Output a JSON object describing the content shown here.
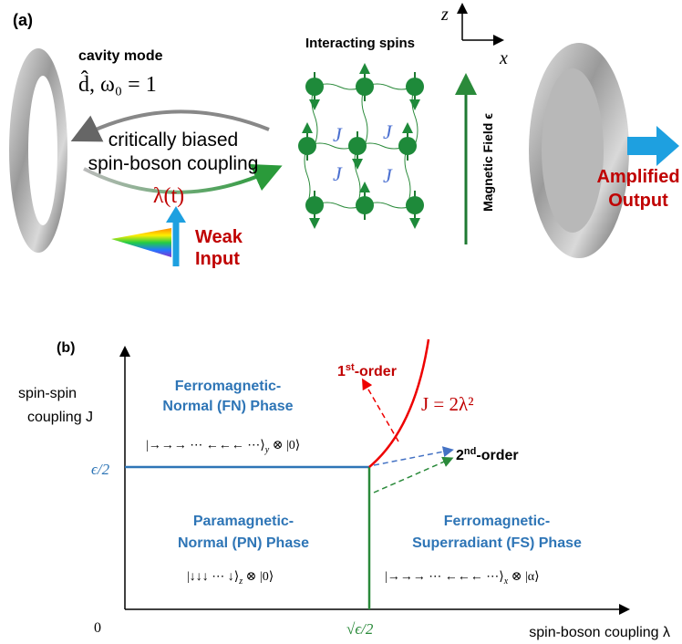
{
  "panel_a": {
    "label": "(a)",
    "cavity_title": "cavity mode",
    "cavity_params": "d̂, ω₀ = 1",
    "coupling_line1": "critically biased",
    "coupling_line2": "spin-boson coupling",
    "coupling_symbol": "λ(t)",
    "input_line1": "Weak",
    "input_line2": "Input",
    "spins_title": "Interacting spins",
    "spin_coupling_symbol": "J",
    "field_label": "Magnetic Field ϵ",
    "axis_z": "z",
    "axis_x": "x",
    "output_line1": "Amplified",
    "output_line2": "Output"
  },
  "panel_b": {
    "label": "(b)",
    "y_axis_label_line1": "spin-spin",
    "y_axis_label_line2": "coupling J",
    "x_axis_label": "spin-boson coupling λ",
    "origin": "0",
    "y_mark": "ϵ/2",
    "x_mark": "√ϵ/2",
    "fn_phase": {
      "line1": "Ferromagnetic-",
      "line2": "Normal (FN) Phase",
      "state": {
        "ket": "|→→→ ⋯ ←←← ⋯⟩",
        "sub": "y",
        "rest": " ⊗ |0⟩"
      }
    },
    "pn_phase": {
      "line1": "Paramagnetic-",
      "line2": "Normal (PN) Phase",
      "state": {
        "ket": "|↓↓↓ ⋯ ↓⟩",
        "sub": "z",
        "rest": " ⊗ |0⟩"
      }
    },
    "fs_phase": {
      "line1": "Ferromagnetic-",
      "line2": "Superradiant (FS) Phase",
      "state": {
        "ket": "|→→→ ⋯ ←←← ⋯⟩",
        "sub": "x",
        "rest": " ⊗ |α⟩"
      }
    },
    "first_order": {
      "num": "1",
      "sup": "st",
      "rest": "-order"
    },
    "second_order": {
      "num": "2",
      "sup": "nd",
      "rest": "-order"
    },
    "boundary_equation": "J = 2λ²"
  }
}
